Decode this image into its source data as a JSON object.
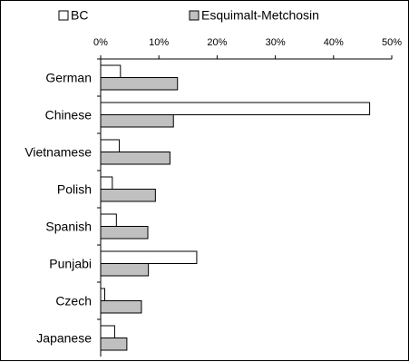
{
  "chart_data": {
    "type": "bar",
    "orientation": "horizontal",
    "categories": [
      "German",
      "Chinese",
      "Vietnamese",
      "Polish",
      "Spanish",
      "Punjabi",
      "Czech",
      "Japanese"
    ],
    "series": [
      {
        "name": "BC",
        "values": [
          3.4,
          46.2,
          3.2,
          2.0,
          2.7,
          16.5,
          0.7,
          2.4
        ],
        "color": "#ffffff"
      },
      {
        "name": "Esquimalt-Metchosin",
        "values": [
          13.2,
          12.5,
          11.9,
          9.4,
          8.1,
          8.2,
          7.0,
          4.5
        ],
        "color": "#c0c0c0"
      }
    ],
    "xlim": [
      0,
      50
    ],
    "xticks": [
      "0%",
      "10%",
      "20%",
      "30%",
      "40%",
      "50%"
    ],
    "xtick_values": [
      0,
      10,
      20,
      30,
      40,
      50
    ],
    "legend_position": "top",
    "grid": false,
    "title": "",
    "xlabel": "",
    "ylabel": ""
  },
  "colors": {
    "axis": "#000000",
    "bar_outline": "#000000"
  }
}
